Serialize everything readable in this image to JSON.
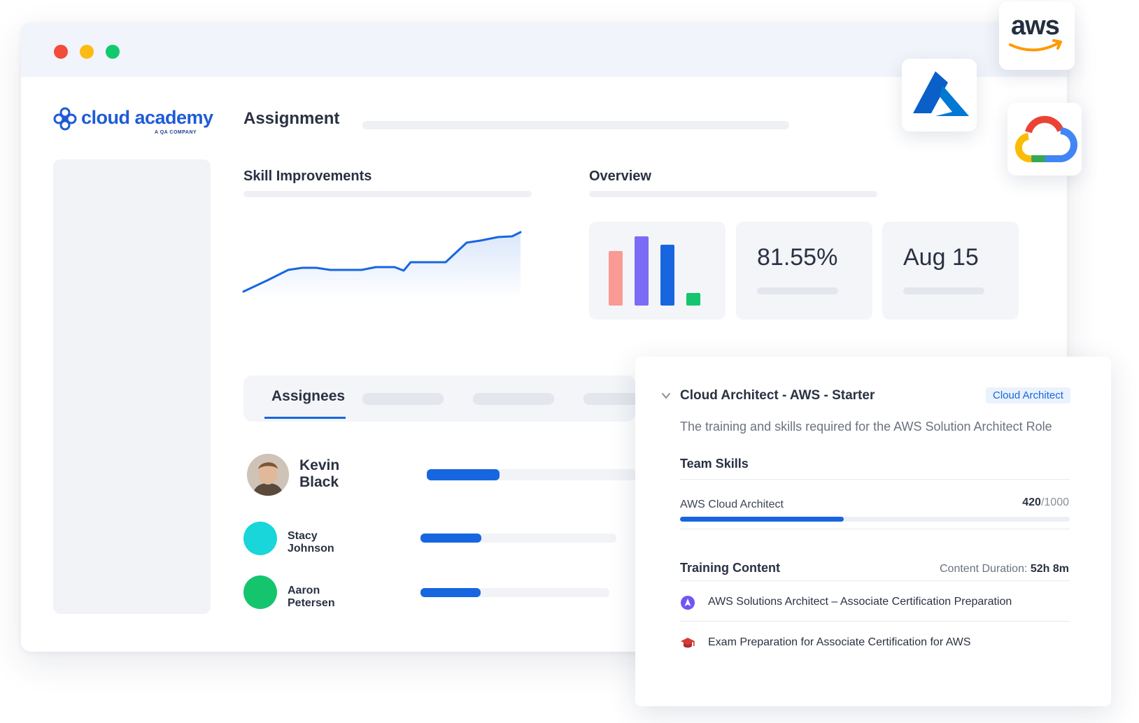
{
  "brand": {
    "name": "cloud academy",
    "tagline": "A QA COMPANY",
    "color": "#1e5bd6"
  },
  "page": {
    "title": "Assignment"
  },
  "sections": {
    "skill_improvements": "Skill Improvements",
    "overview": "Overview"
  },
  "overview_cards": {
    "bar_colors": [
      "#f99a94",
      "#7b6cf6",
      "#1766e0",
      "#15c56d"
    ],
    "percent_value": "81.55%",
    "date_value": "Aug 15"
  },
  "tabs": {
    "active": "Assignees"
  },
  "assignees": [
    {
      "name": "Kevin Black",
      "progress": 0.18,
      "avatar_color": "#d9b8a0"
    },
    {
      "name": "Stacy Johnson",
      "progress": 0.31,
      "avatar_color": "#18d6d9"
    },
    {
      "name": "Aaron Petersen",
      "progress": 0.32,
      "avatar_color": "#15c56d"
    }
  ],
  "partner_logos": [
    "aws-logo",
    "azure-logo",
    "google-cloud-logo"
  ],
  "aws_logo_text": "aws",
  "detail": {
    "title": "Cloud Architect - AWS - Starter",
    "tag": "Cloud Architect",
    "description": "The training and skills required for the AWS Solution Architect Role",
    "team_skills_label": "Team Skills",
    "skill": {
      "name": "AWS Cloud Architect",
      "score": "420",
      "max": "/1000",
      "progress": 0.42
    },
    "training_content_label": "Training Content",
    "duration_label": "Content Duration:",
    "duration_value": "52h 8m",
    "items": [
      {
        "title": "AWS Solutions Architect – Associate Certification Preparation",
        "icon": "learning-path-icon"
      },
      {
        "title": "Exam Preparation for Associate Certification for AWS",
        "icon": "graduation-cap-icon"
      }
    ]
  },
  "colors": {
    "accent": "#1766e0",
    "window_controls": [
      "#f44c3a",
      "#fbbb13",
      "#13c96e"
    ]
  }
}
